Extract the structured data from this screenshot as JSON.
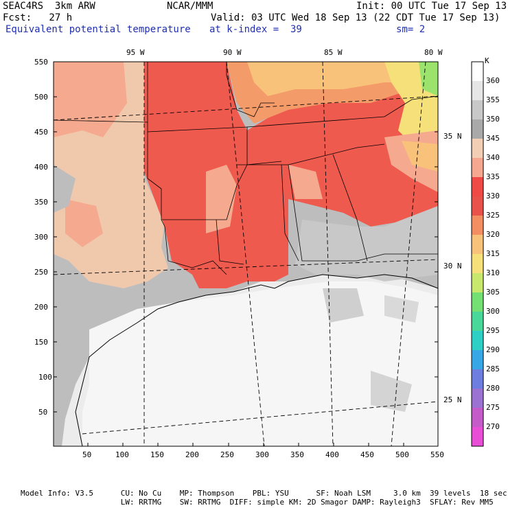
{
  "header": {
    "line1_left": "SEAC4RS  3km ARW",
    "line1_center": "NCAR/MMM",
    "line1_right": "Init: 00 UTC Tue 17 Sep 13",
    "line2_left": "Fcst:   27 h",
    "line2_right": "Valid: 03 UTC Wed 18 Sep 13 (22 CDT Tue 17 Sep 13)",
    "line3_left": "Equivalent potential temperature",
    "line3_center": "at k-index =  39",
    "line3_right": "sm= 2"
  },
  "map": {
    "x_ticks": [
      "50",
      "100",
      "150",
      "200",
      "250",
      "300",
      "350",
      "400",
      "450",
      "500",
      "550"
    ],
    "y_ticks": [
      "550",
      "500",
      "450",
      "400",
      "350",
      "300",
      "250",
      "200",
      "150",
      "100",
      "50"
    ],
    "lon_labels": [
      "95 W",
      "90 W",
      "85 W",
      "80 W"
    ],
    "lat_labels": [
      "35 N",
      "30 N",
      "25 N"
    ]
  },
  "colorbar": {
    "unit": "K",
    "levels": [
      "360",
      "355",
      "350",
      "345",
      "340",
      "335",
      "330",
      "325",
      "320",
      "315",
      "310",
      "305",
      "300",
      "295",
      "290",
      "285",
      "280",
      "275",
      "270"
    ],
    "colors": [
      "#ffffff",
      "#e6e6e6",
      "#c8c8c8",
      "#a9a9a9",
      "#f2cfb4",
      "#f5a88f",
      "#ef4a45",
      "#e8524a",
      "#f38d62",
      "#f9c27b",
      "#f5e07a",
      "#c7e86d",
      "#74e073",
      "#49d89a",
      "#2ed0c6",
      "#38a7e6",
      "#6d7ee0",
      "#9b72d2",
      "#c55bc8",
      "#e84fd6"
    ]
  },
  "footer": {
    "line1": "Model Info: V3.5      CU: No Cu    MP: Thompson    PBL: YSU      SF: Noah LSM     3.0 km  39 levels  18 sec",
    "line2": "                      LW: RRTMG    SW: RRTMG  DIFF: simple KM: 2D Smagor DAMP: Rayleigh3  SFLAY: Rev MM5"
  }
}
